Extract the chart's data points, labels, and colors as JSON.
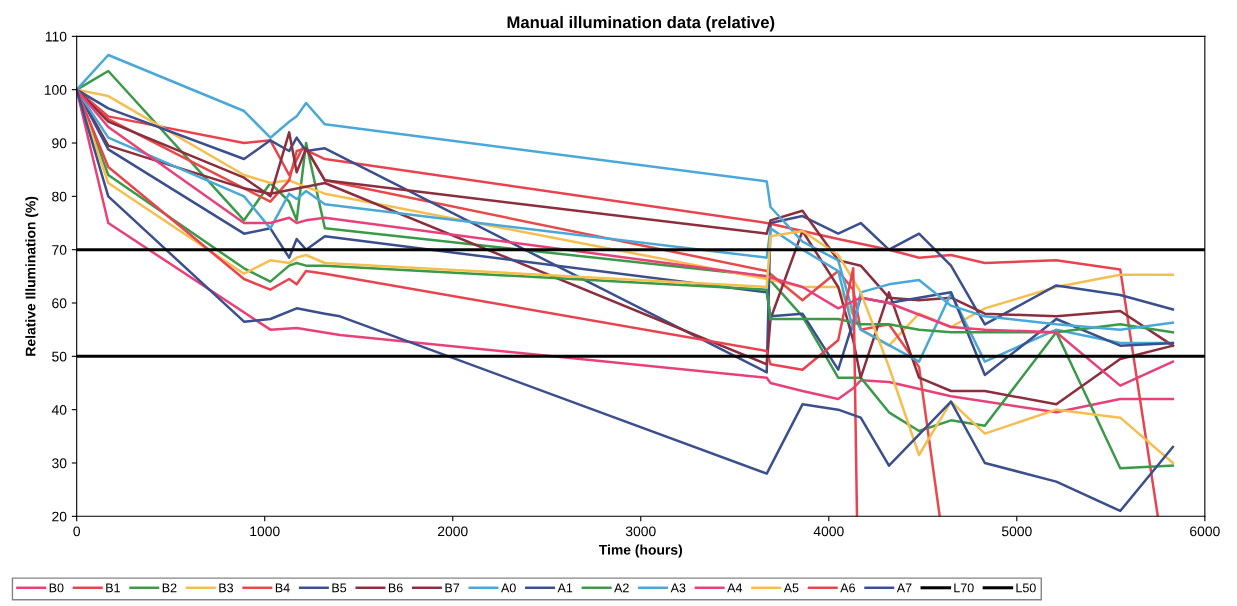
{
  "chart_data": {
    "type": "line",
    "title": "Manual illumination data (relative)",
    "xlabel": "Time (hours)",
    "ylabel": "Relative Illumination (%)",
    "xlim": [
      0,
      6000
    ],
    "xticks": [
      0,
      1000,
      2000,
      3000,
      4000,
      5000,
      6000
    ],
    "ylim": [
      20,
      110
    ],
    "yticks": [
      20,
      30,
      40,
      50,
      60,
      70,
      80,
      90,
      100,
      110
    ],
    "grid": false,
    "legend": "bottom",
    "marker": "none",
    "line_style": "solid",
    "series": [
      {
        "name": "B0",
        "color": "#e8417a",
        "x": [
          0,
          168,
          1030,
          1170,
          1400,
          3670,
          3690,
          3860,
          4050,
          4130,
          4170,
          4320,
          4650,
          5210,
          5550,
          5830
        ],
        "values": [
          100,
          75,
          55,
          55.3,
          54,
          46,
          45,
          43.5,
          42,
          44,
          45.5,
          45.2,
          42.5,
          39.5,
          42,
          42
        ]
      },
      {
        "name": "B1",
        "color": "#e8434f",
        "x": [
          0,
          168,
          890,
          1030,
          1130,
          1200,
          1320,
          3670,
          3860,
          4050,
          4320,
          4480,
          4650,
          4830,
          5210,
          5550,
          5750
        ],
        "values": [
          100,
          95,
          90,
          90.5,
          84,
          89,
          87,
          75,
          73.5,
          72,
          70,
          68.5,
          69,
          67.5,
          68,
          66.3,
          20
        ]
      },
      {
        "name": "B2",
        "color": "#3a9a48",
        "x": [
          0,
          168,
          890,
          1030,
          1130,
          1170,
          1220,
          1320,
          3670,
          3860,
          4050,
          4170,
          4320,
          4480,
          4650,
          4830,
          5210,
          5550,
          5830
        ],
        "values": [
          100,
          103.5,
          75.5,
          82.5,
          79,
          75.5,
          90,
          74,
          65,
          57.5,
          46,
          46,
          39.5,
          36,
          38,
          37,
          54.5,
          29,
          29.5
        ]
      },
      {
        "name": "B3",
        "color": "#f5be4f",
        "x": [
          0,
          168,
          890,
          1030,
          1130,
          1200,
          1320,
          3670,
          3860,
          4050,
          4170,
          4320,
          4480,
          4650,
          4830,
          5210,
          5550,
          5830
        ],
        "values": [
          100,
          98.8,
          84,
          82.5,
          83,
          82,
          80.5,
          64.5,
          63,
          63,
          55,
          52,
          58,
          55.5,
          59,
          63,
          65.3,
          65.3
        ]
      },
      {
        "name": "B4",
        "color": "#e84a4a",
        "x": [
          0,
          168,
          890,
          1030,
          1130,
          1170,
          1220,
          1320,
          3670,
          3860,
          4050,
          4130,
          4170,
          4320,
          4480,
          4590
        ],
        "values": [
          100,
          94.5,
          81.5,
          79,
          83,
          88.5,
          89,
          83,
          66,
          60.5,
          66,
          62.5,
          55,
          56,
          48,
          20
        ]
      },
      {
        "name": "B5",
        "color": "#3b4f8f",
        "x": [
          0,
          168,
          890,
          1030,
          1130,
          1170,
          1220,
          1320,
          3670,
          3690,
          3860,
          4050,
          4170,
          4320,
          4480,
          4650,
          4830,
          5210,
          5550,
          5830
        ],
        "values": [
          100,
          96.5,
          87,
          90.5,
          88.5,
          91,
          88.5,
          89,
          47,
          75,
          76.3,
          73,
          75,
          70,
          73,
          67,
          56,
          63.3,
          61.5,
          58.8
        ]
      },
      {
        "name": "B6",
        "color": "#8b2e3e",
        "x": [
          0,
          168,
          890,
          1030,
          1130,
          1170,
          1220,
          1320,
          3670,
          3690,
          3860,
          4050,
          4170,
          4320,
          4480,
          4650,
          4830,
          5210,
          5550,
          5830
        ],
        "values": [
          100,
          94,
          83.5,
          80,
          92,
          84.5,
          89,
          83,
          73,
          75.5,
          77.3,
          68,
          67,
          61,
          60.5,
          61,
          58,
          57.5,
          58.5,
          52
        ]
      },
      {
        "name": "B7",
        "color": "#8b2e3e",
        "x": [
          0,
          168,
          890,
          1030,
          1320,
          3670,
          3690,
          3860,
          4050,
          4130,
          4170,
          4320,
          4480,
          4650,
          4830,
          5210,
          5550,
          5830
        ],
        "values": [
          100,
          89.5,
          81.5,
          80.5,
          82.5,
          48.5,
          57,
          73.5,
          63,
          53,
          46,
          62,
          46,
          43.5,
          43.5,
          41,
          49.5,
          52
        ]
      },
      {
        "name": "A0",
        "color": "#4aa8d8",
        "x": [
          0,
          168,
          890,
          1030,
          1130,
          1170,
          1220,
          1320,
          3670,
          3690,
          3860,
          4050,
          4130,
          4170,
          4480,
          4650,
          4830,
          5210,
          5550,
          5830
        ],
        "values": [
          100,
          106.5,
          96,
          91,
          94,
          95,
          97.5,
          93.5,
          82.8,
          78,
          71.5,
          68,
          58,
          55,
          49,
          61.8,
          49,
          55,
          52.5,
          52.5
        ]
      },
      {
        "name": "A1",
        "color": "#3b4f8f",
        "x": [
          0,
          168,
          890,
          1030,
          1130,
          1170,
          1220,
          1320,
          3670,
          3690,
          3860,
          4050,
          4170,
          4320,
          4480,
          4650,
          4830,
          5210,
          5550,
          5830
        ],
        "values": [
          100,
          88.8,
          73,
          74,
          68.5,
          72,
          70,
          72.5,
          62,
          57.5,
          58,
          47.5,
          61,
          60,
          61,
          62,
          46.5,
          57,
          52,
          52.5
        ]
      },
      {
        "name": "A2",
        "color": "#3a9a48",
        "x": [
          0,
          168,
          890,
          1030,
          1130,
          1170,
          1220,
          1320,
          3670,
          3690,
          3860,
          4050,
          4170,
          4320,
          4480,
          4650,
          4830,
          5210,
          5550,
          5830
        ],
        "values": [
          100,
          84,
          66.5,
          64,
          67,
          67.5,
          67,
          67,
          62.5,
          57,
          57,
          57,
          56,
          56,
          55,
          54.5,
          54.5,
          54.5,
          56,
          54.5
        ]
      },
      {
        "name": "A3",
        "color": "#4aa8d8",
        "x": [
          0,
          168,
          890,
          1030,
          1130,
          1170,
          1220,
          1320,
          3670,
          3690,
          3860,
          4050,
          4130,
          4170,
          4320,
          4480,
          4650,
          4830,
          5210,
          5550,
          5830
        ],
        "values": [
          100,
          91,
          80,
          74,
          80.5,
          79.5,
          81,
          78.5,
          68.5,
          74,
          70,
          66,
          55,
          62,
          63.5,
          64.3,
          59.5,
          57.5,
          56,
          55,
          56.3
        ]
      },
      {
        "name": "A4",
        "color": "#e8417a",
        "x": [
          0,
          168,
          890,
          1030,
          1130,
          1170,
          1220,
          1320,
          3670,
          3860,
          4050,
          4170,
          4320,
          4650,
          4830,
          5210,
          5550,
          5830
        ],
        "values": [
          100,
          93,
          75,
          75,
          76,
          75,
          75.5,
          76,
          65,
          63,
          59,
          61,
          60,
          55.5,
          55,
          54.5,
          44.5,
          49
        ]
      },
      {
        "name": "A5",
        "color": "#f5be4f",
        "x": [
          0,
          168,
          890,
          1030,
          1130,
          1170,
          1220,
          1320,
          3670,
          3690,
          3860,
          4050,
          4170,
          4320,
          4480,
          4650,
          4830,
          5210,
          5550,
          5830
        ],
        "values": [
          100,
          82.5,
          65.5,
          68,
          67.5,
          68.5,
          69,
          67.5,
          63,
          72.5,
          73.5,
          69,
          62,
          48,
          31.5,
          41.5,
          35.5,
          40,
          38.5,
          30
        ]
      },
      {
        "name": "A6",
        "color": "#e8434f",
        "x": [
          0,
          168,
          890,
          1030,
          1130,
          1170,
          1220,
          1320,
          3670,
          3690,
          3860,
          4050,
          4130,
          4150
        ],
        "values": [
          100,
          85.5,
          64.5,
          62.5,
          64.5,
          63.5,
          66,
          65.5,
          51,
          48.5,
          47.5,
          53,
          66.5,
          20
        ]
      },
      {
        "name": "A7",
        "color": "#3b4f8f",
        "x": [
          0,
          168,
          890,
          1030,
          1170,
          1320,
          1400,
          3670,
          3860,
          4050,
          4170,
          4320,
          4650,
          4830,
          5210,
          5550,
          5830
        ],
        "values": [
          100,
          80,
          56.5,
          57,
          59,
          58,
          57.5,
          28,
          41,
          40,
          38.5,
          29.5,
          41.5,
          30,
          26.5,
          21,
          33
        ]
      },
      {
        "name": "L70",
        "color": "#000000",
        "x": [
          0,
          6000
        ],
        "values": [
          70,
          70
        ]
      },
      {
        "name": "L50",
        "color": "#000000",
        "x": [
          0,
          6000
        ],
        "values": [
          50,
          50
        ]
      }
    ]
  }
}
